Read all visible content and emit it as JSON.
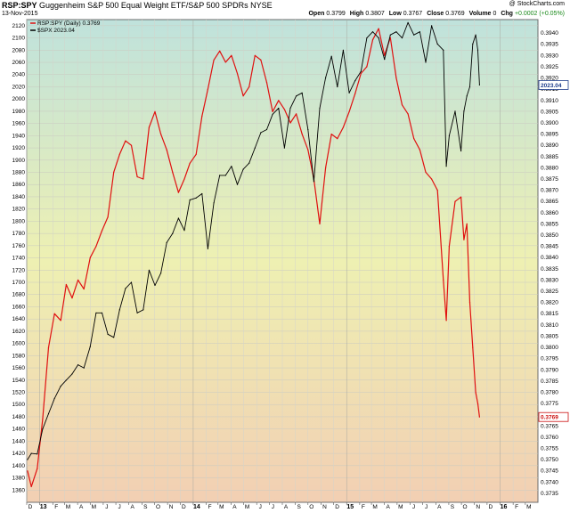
{
  "header": {
    "symbol": "RSP:SPY",
    "description": "Guggenheim S&P 500 Equal Weight ETF/S&P 500 SPDRs  NYSE",
    "date": "13-Nov-2015",
    "watermark": "@ StockCharts.com",
    "open_label": "Open",
    "open": "0.3799",
    "high_label": "High",
    "high": "0.3807",
    "low_label": "Low",
    "low": "0.3767",
    "close_label": "Close",
    "close": "0.3769",
    "volume_label": "Volume",
    "volume": "0",
    "chg_label": "Chg",
    "chg": "+0.0002 (+0.05%)"
  },
  "chart_data": {
    "type": "line",
    "legend_position": "top-left",
    "legend": [
      "RSP:SPY (Daily) 0.3769",
      "$SPX 2023.04"
    ],
    "grid": true,
    "background": "vertical gradient: pale teal (top) to yellow (middle) to peach (bottom)",
    "x_range": [
      "2012-12-01",
      "2016-03-31"
    ],
    "x_tick_labels": [
      "D",
      "13",
      "F",
      "M",
      "A",
      "M",
      "J",
      "J",
      "A",
      "S",
      "O",
      "N",
      "D",
      "14",
      "F",
      "M",
      "A",
      "M",
      "J",
      "J",
      "A",
      "S",
      "O",
      "N",
      "D",
      "15",
      "F",
      "M",
      "A",
      "M",
      "J",
      "J",
      "A",
      "S",
      "O",
      "N",
      "D",
      "16",
      "F",
      "M"
    ],
    "left_axis": {
      "series": "$SPX",
      "range": [
        1340,
        2130
      ],
      "tick_labels": [
        "1360",
        "1380",
        "1400",
        "1420",
        "1440",
        "1460",
        "1480",
        "1500",
        "1520",
        "1540",
        "1560",
        "1580",
        "1600",
        "1620",
        "1640",
        "1660",
        "1680",
        "1700",
        "1720",
        "1740",
        "1760",
        "1780",
        "1800",
        "1820",
        "1840",
        "1860",
        "1880",
        "1900",
        "1920",
        "1940",
        "1960",
        "1980",
        "2000",
        "2020",
        "2040",
        "2060",
        "2080",
        "2100",
        "2120"
      ]
    },
    "right_axis": {
      "series": "RSP:SPY",
      "range": [
        0.3731,
        0.3946
      ],
      "tick_labels": [
        "0.3735",
        "0.3740",
        "0.3745",
        "0.3750",
        "0.3755",
        "0.3760",
        "0.3765",
        "0.3770",
        "0.3775",
        "0.3780",
        "0.3785",
        "0.3790",
        "0.3795",
        "0.3800",
        "0.3805",
        "0.3810",
        "0.3815",
        "0.3820",
        "0.3825",
        "0.3830",
        "0.3835",
        "0.3840",
        "0.3845",
        "0.3850",
        "0.3855",
        "0.3860",
        "0.3865",
        "0.3870",
        "0.3875",
        "0.3880",
        "0.3885",
        "0.3890",
        "0.3895",
        "0.3900",
        "0.3905",
        "0.3910",
        "0.3915",
        "0.3920",
        "0.3925",
        "0.3930",
        "0.3935",
        "0.3940"
      ]
    },
    "series": [
      {
        "name": "RSP:SPY (Daily)",
        "color": "#e01010",
        "axis": "right",
        "last_value_label": "0.3769",
        "x": [
          "2012-12-03",
          "2012-12-12",
          "2012-12-26",
          "2013-01-08",
          "2013-01-22",
          "2013-02-05",
          "2013-02-20",
          "2013-03-05",
          "2013-03-19",
          "2013-04-02",
          "2013-04-16",
          "2013-05-01",
          "2013-05-15",
          "2013-05-29",
          "2013-06-12",
          "2013-06-26",
          "2013-07-10",
          "2013-07-24",
          "2013-08-07",
          "2013-08-21",
          "2013-09-04",
          "2013-09-18",
          "2013-10-02",
          "2013-10-16",
          "2013-10-30",
          "2013-11-13",
          "2013-11-27",
          "2013-12-11",
          "2013-12-24",
          "2014-01-08",
          "2014-01-22",
          "2014-02-05",
          "2014-02-19",
          "2014-03-05",
          "2014-03-19",
          "2014-04-02",
          "2014-04-16",
          "2014-04-30",
          "2014-05-14",
          "2014-05-28",
          "2014-06-11",
          "2014-06-25",
          "2014-07-09",
          "2014-07-23",
          "2014-08-06",
          "2014-08-20",
          "2014-09-03",
          "2014-09-17",
          "2014-10-01",
          "2014-10-15",
          "2014-10-29",
          "2014-11-12",
          "2014-11-26",
          "2014-12-10",
          "2014-12-24",
          "2015-01-07",
          "2015-01-21",
          "2015-02-04",
          "2015-02-18",
          "2015-03-04",
          "2015-03-18",
          "2015-04-01",
          "2015-04-15",
          "2015-04-29",
          "2015-05-13",
          "2015-05-27",
          "2015-06-10",
          "2015-06-24",
          "2015-07-08",
          "2015-07-22",
          "2015-08-05",
          "2015-08-19",
          "2015-08-26",
          "2015-09-02",
          "2015-09-16",
          "2015-09-30",
          "2015-10-07",
          "2015-10-14",
          "2015-10-21",
          "2015-10-28",
          "2015-11-04",
          "2015-11-09",
          "2015-11-13"
        ],
        "values": [
          0.3745,
          0.3738,
          0.3746,
          0.3768,
          0.38,
          0.3815,
          0.3812,
          0.3828,
          0.3822,
          0.383,
          0.3826,
          0.384,
          0.3845,
          0.3852,
          0.3858,
          0.3878,
          0.3886,
          0.3892,
          0.389,
          0.3876,
          0.3875,
          0.3898,
          0.3905,
          0.3895,
          0.3888,
          0.3878,
          0.3869,
          0.3875,
          0.3882,
          0.3886,
          0.3903,
          0.3915,
          0.3928,
          0.3932,
          0.3927,
          0.393,
          0.3922,
          0.3912,
          0.3916,
          0.393,
          0.3928,
          0.3918,
          0.3905,
          0.391,
          0.3906,
          0.39,
          0.3904,
          0.3895,
          0.3888,
          0.3875,
          0.3855,
          0.388,
          0.3895,
          0.3893,
          0.3898,
          0.3905,
          0.3913,
          0.3922,
          0.3925,
          0.3937,
          0.3942,
          0.393,
          0.3938,
          0.392,
          0.3908,
          0.3904,
          0.3893,
          0.3888,
          0.3878,
          0.3875,
          0.387,
          0.383,
          0.3812,
          0.3845,
          0.3865,
          0.3867,
          0.3848,
          0.3855,
          0.382,
          0.38,
          0.378,
          0.3775,
          0.3769
        ]
      },
      {
        "name": "$SPX",
        "color": "#000000",
        "axis": "left",
        "last_value_label": "2023.04",
        "x": [
          "2012-12-03",
          "2012-12-12",
          "2012-12-26",
          "2013-01-08",
          "2013-01-22",
          "2013-02-05",
          "2013-02-20",
          "2013-03-05",
          "2013-03-19",
          "2013-04-02",
          "2013-04-16",
          "2013-05-01",
          "2013-05-15",
          "2013-05-29",
          "2013-06-12",
          "2013-06-26",
          "2013-07-10",
          "2013-07-24",
          "2013-08-07",
          "2013-08-21",
          "2013-09-04",
          "2013-09-18",
          "2013-10-02",
          "2013-10-16",
          "2013-10-30",
          "2013-11-13",
          "2013-11-27",
          "2013-12-11",
          "2013-12-24",
          "2014-01-08",
          "2014-01-22",
          "2014-02-05",
          "2014-02-19",
          "2014-03-05",
          "2014-03-19",
          "2014-04-02",
          "2014-04-16",
          "2014-04-30",
          "2014-05-14",
          "2014-05-28",
          "2014-06-11",
          "2014-06-25",
          "2014-07-09",
          "2014-07-23",
          "2014-08-06",
          "2014-08-20",
          "2014-09-03",
          "2014-09-17",
          "2014-10-01",
          "2014-10-15",
          "2014-10-29",
          "2014-11-12",
          "2014-11-26",
          "2014-12-10",
          "2014-12-24",
          "2015-01-07",
          "2015-01-21",
          "2015-02-04",
          "2015-02-18",
          "2015-03-04",
          "2015-03-18",
          "2015-04-01",
          "2015-04-15",
          "2015-04-29",
          "2015-05-13",
          "2015-05-27",
          "2015-06-10",
          "2015-06-24",
          "2015-07-08",
          "2015-07-22",
          "2015-08-05",
          "2015-08-19",
          "2015-08-26",
          "2015-09-02",
          "2015-09-16",
          "2015-09-30",
          "2015-10-07",
          "2015-10-14",
          "2015-10-21",
          "2015-10-28",
          "2015-11-04",
          "2015-11-09",
          "2015-11-13"
        ],
        "values": [
          1410,
          1420,
          1419,
          1460,
          1485,
          1510,
          1530,
          1540,
          1550,
          1565,
          1560,
          1595,
          1650,
          1650,
          1615,
          1610,
          1655,
          1690,
          1700,
          1650,
          1655,
          1720,
          1695,
          1715,
          1765,
          1780,
          1805,
          1785,
          1835,
          1838,
          1845,
          1755,
          1830,
          1875,
          1875,
          1890,
          1860,
          1885,
          1895,
          1920,
          1945,
          1950,
          1975,
          1985,
          1920,
          1985,
          2005,
          2010,
          1950,
          1865,
          1985,
          2035,
          2070,
          2020,
          2080,
          2010,
          2030,
          2045,
          2100,
          2110,
          2100,
          2065,
          2105,
          2110,
          2100,
          2125,
          2105,
          2110,
          2060,
          2120,
          2090,
          2080,
          1890,
          1940,
          1980,
          1915,
          1980,
          2005,
          2020,
          2090,
          2105,
          2080,
          2023
        ]
      }
    ]
  }
}
